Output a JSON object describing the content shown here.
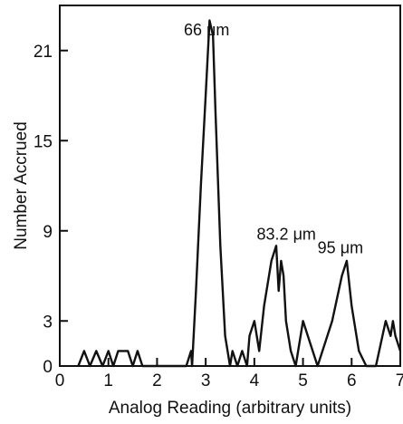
{
  "chart_data": {
    "type": "line",
    "title": "",
    "xlabel": "Analog Reading (arbitrary units)",
    "ylabel": "Number Accrued",
    "xlim": [
      0,
      7
    ],
    "ylim": [
      0,
      24
    ],
    "x_ticks": [
      0,
      1,
      2,
      3,
      4,
      5,
      6,
      7
    ],
    "y_ticks": [
      0,
      3,
      9,
      15,
      21
    ],
    "grid": false,
    "line_color": "#111111",
    "series": [
      {
        "x": [
          0.38,
          0.5,
          0.62,
          0.75,
          0.88,
          1.0,
          1.1,
          1.2,
          1.3,
          1.4,
          1.5,
          1.6,
          1.7,
          1.8,
          2.2,
          2.6,
          2.7,
          2.72,
          2.8,
          2.9,
          3.0,
          3.08,
          3.15,
          3.2,
          3.3,
          3.4,
          3.5,
          3.55,
          3.65,
          3.75,
          3.85,
          3.9,
          4.0,
          4.1,
          4.2,
          4.35,
          4.45,
          4.5,
          4.55,
          4.6,
          4.65,
          4.75,
          4.85,
          5.0,
          5.1,
          5.3,
          5.6,
          5.8,
          5.9,
          6.0,
          6.15,
          6.3,
          6.5,
          6.7,
          6.8,
          6.85,
          6.9,
          7.0
        ],
        "y": [
          0,
          1,
          0,
          1,
          0,
          1,
          0,
          1,
          1,
          1,
          0,
          1,
          0,
          0,
          0,
          0,
          1,
          0,
          5,
          12,
          18,
          23,
          22,
          17,
          8,
          2,
          0,
          1,
          0,
          1,
          0,
          2,
          3,
          1,
          4,
          7,
          8,
          5,
          7,
          6,
          3,
          1,
          0,
          3,
          2,
          0,
          3,
          6,
          7,
          4,
          1,
          0,
          0,
          3,
          2,
          3,
          2,
          1
        ]
      }
    ],
    "annotations": [
      {
        "text": "66 μm",
        "x": 2.55,
        "y": 22.0
      },
      {
        "text": "83.2 μm",
        "x": 4.05,
        "y": 8.4
      },
      {
        "text": "95 μm",
        "x": 5.3,
        "y": 7.5
      }
    ]
  }
}
